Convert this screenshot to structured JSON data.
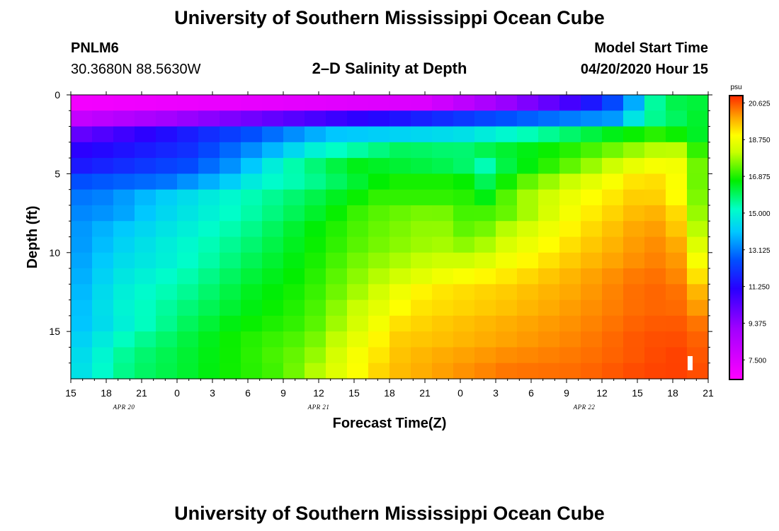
{
  "page": {
    "title_top": "University of Southern Mississippi Ocean Cube",
    "title_bottom": "University of Southern Mississippi Ocean Cube",
    "station_id": "PNLM6",
    "station_coords": "30.3680N 88.5630W",
    "plot_title": "2–D Salinity at Depth",
    "model_start_label": "Model Start Time",
    "model_start_value": "04/20/2020 Hour 15"
  },
  "chart_data": {
    "type": "heatmap",
    "title": "2–D Salinity at Depth",
    "xlabel": "Forecast Time(Z)",
    "ylabel": "Depth (ft)",
    "x_hours_range": [
      0,
      54
    ],
    "x_ticks": [
      "15",
      "18",
      "21",
      "0",
      "3",
      "6",
      "9",
      "12",
      "15",
      "18",
      "21",
      "0",
      "3",
      "6",
      "9",
      "12",
      "15",
      "18",
      "21"
    ],
    "x_tick_hours": [
      0,
      3,
      6,
      9,
      12,
      15,
      18,
      21,
      24,
      27,
      30,
      33,
      36,
      39,
      42,
      45,
      48,
      51,
      54
    ],
    "date_labels": [
      {
        "text": "APR 20",
        "hour": 4.5
      },
      {
        "text": "APR 21",
        "hour": 21
      },
      {
        "text": "APR 22",
        "hour": 43.5
      }
    ],
    "y_range_ft": [
      0,
      18
    ],
    "y_ticks": [
      0,
      5,
      10,
      15
    ],
    "colorbar": {
      "unit": "psu",
      "min": 6.5,
      "max": 21.0,
      "labels": [
        "20.625",
        "18.750",
        "16.875",
        "15.000",
        "13.125",
        "11.250",
        "9.375",
        "7.500"
      ],
      "label_values": [
        20.625,
        18.75,
        16.875,
        15.0,
        13.125,
        11.25,
        9.375,
        7.5
      ]
    },
    "grid": {
      "cols": 30,
      "rows": 18
    },
    "rows": [
      {
        "depth": 0.5,
        "profile": [
          [
            0,
            6.8
          ],
          [
            30,
            7.5
          ],
          [
            42,
            10.5
          ],
          [
            47,
            13
          ],
          [
            50,
            16
          ],
          [
            54,
            16.3
          ]
        ]
      },
      {
        "depth": 1.5,
        "profile": [
          [
            0,
            8
          ],
          [
            20,
            10.5
          ],
          [
            36,
            12.5
          ],
          [
            46,
            13.5
          ],
          [
            49,
            15.5
          ],
          [
            54,
            16.5
          ]
        ]
      },
      {
        "depth": 2.5,
        "profile": [
          [
            0,
            10
          ],
          [
            15,
            12.5
          ],
          [
            22,
            14
          ],
          [
            33,
            14.5
          ],
          [
            40,
            15.5
          ],
          [
            46,
            16.5
          ],
          [
            50,
            17
          ],
          [
            54,
            16.2
          ]
        ]
      },
      {
        "depth": 3.5,
        "profile": [
          [
            0,
            11
          ],
          [
            10,
            12
          ],
          [
            16,
            13.5
          ],
          [
            21,
            15
          ],
          [
            28,
            16
          ],
          [
            33,
            15.8
          ],
          [
            36,
            16.2
          ],
          [
            43,
            17
          ],
          [
            48,
            17.8
          ],
          [
            51,
            18.2
          ],
          [
            54,
            16.5
          ]
        ]
      },
      {
        "depth": 4.5,
        "profile": [
          [
            0,
            11.5
          ],
          [
            10,
            12.5
          ],
          [
            14,
            13.5
          ],
          [
            18,
            15.2
          ],
          [
            24,
            16.5
          ],
          [
            33,
            16
          ],
          [
            35,
            15.3
          ],
          [
            37,
            16.2
          ],
          [
            43,
            17.5
          ],
          [
            48,
            18.7
          ],
          [
            51,
            19
          ],
          [
            54,
            16.8
          ]
        ]
      },
      {
        "depth": 5.5,
        "profile": [
          [
            0,
            12.5
          ],
          [
            8,
            13
          ],
          [
            13,
            14
          ],
          [
            16,
            15
          ],
          [
            20,
            15.5
          ],
          [
            27,
            16.8
          ],
          [
            33,
            16.8
          ],
          [
            35,
            16
          ],
          [
            38,
            17.2
          ],
          [
            43,
            18.3
          ],
          [
            48,
            19.3
          ],
          [
            51,
            19.3
          ],
          [
            52,
            18
          ],
          [
            54,
            17
          ]
        ]
      },
      {
        "depth": 6.5,
        "profile": [
          [
            0,
            13
          ],
          [
            3,
            13.2
          ],
          [
            7,
            14
          ],
          [
            15,
            15.3
          ],
          [
            20,
            16
          ],
          [
            26,
            17
          ],
          [
            33,
            17
          ],
          [
            35,
            16.5
          ],
          [
            38,
            17.7
          ],
          [
            43,
            18.8
          ],
          [
            48,
            19.5
          ],
          [
            51,
            19.4
          ],
          [
            52,
            18
          ],
          [
            54,
            17.2
          ]
        ]
      },
      {
        "depth": 7.5,
        "profile": [
          [
            0,
            13.2
          ],
          [
            4,
            13.5
          ],
          [
            7,
            14.2
          ],
          [
            15,
            15.4
          ],
          [
            20,
            16.2
          ],
          [
            25,
            17.2
          ],
          [
            31,
            17.6
          ],
          [
            34,
            17
          ],
          [
            37,
            17.4
          ],
          [
            43,
            19
          ],
          [
            48,
            19.7
          ],
          [
            51,
            19.8
          ],
          [
            52,
            18.3
          ],
          [
            54,
            17.3
          ]
        ]
      },
      {
        "depth": 8.5,
        "profile": [
          [
            0,
            13.3
          ],
          [
            4,
            14
          ],
          [
            8,
            14.6
          ],
          [
            15,
            15.6
          ],
          [
            20,
            16.5
          ],
          [
            25,
            17.3
          ],
          [
            31,
            17.8
          ],
          [
            34,
            17.2
          ],
          [
            37,
            18
          ],
          [
            43,
            19.2
          ],
          [
            48,
            19.9
          ],
          [
            51,
            20
          ],
          [
            52,
            18.5
          ],
          [
            54,
            17.6
          ]
        ]
      },
      {
        "depth": 9.5,
        "profile": [
          [
            0,
            13.3
          ],
          [
            4,
            14.2
          ],
          [
            8,
            14.8
          ],
          [
            15,
            15.8
          ],
          [
            20,
            16.6
          ],
          [
            25,
            17.4
          ],
          [
            31,
            17.9
          ],
          [
            34,
            17.6
          ],
          [
            37,
            18.4
          ],
          [
            43,
            19.4
          ],
          [
            48,
            20
          ],
          [
            51,
            20.2
          ],
          [
            52,
            19
          ],
          [
            54,
            18
          ]
        ]
      },
      {
        "depth": 10.5,
        "profile": [
          [
            0,
            13.4
          ],
          [
            4,
            14.4
          ],
          [
            9,
            15
          ],
          [
            15,
            16
          ],
          [
            20,
            16.7
          ],
          [
            25,
            17.6
          ],
          [
            31,
            18.2
          ],
          [
            34,
            18.2
          ],
          [
            37,
            18.8
          ],
          [
            43,
            19.6
          ],
          [
            48,
            20.1
          ],
          [
            51,
            20.3
          ],
          [
            52,
            19.3
          ],
          [
            54,
            18.5
          ]
        ]
      },
      {
        "depth": 11.5,
        "profile": [
          [
            0,
            13.5
          ],
          [
            4,
            14.6
          ],
          [
            10,
            15.4
          ],
          [
            15,
            16.2
          ],
          [
            20,
            16.8
          ],
          [
            25,
            17.8
          ],
          [
            31,
            18.7
          ],
          [
            37,
            19.2
          ],
          [
            43,
            19.8
          ],
          [
            48,
            20.3
          ],
          [
            51,
            20.4
          ],
          [
            52,
            19.6
          ],
          [
            54,
            19
          ]
        ]
      },
      {
        "depth": 12.5,
        "profile": [
          [
            0,
            13.6
          ],
          [
            4,
            14.8
          ],
          [
            10,
            15.6
          ],
          [
            15,
            16.4
          ],
          [
            20,
            16.9
          ],
          [
            25,
            18
          ],
          [
            29,
            19
          ],
          [
            31,
            19.2
          ],
          [
            37,
            19.5
          ],
          [
            43,
            19.9
          ],
          [
            48,
            20.4
          ],
          [
            51,
            20.5
          ],
          [
            52,
            20
          ],
          [
            54,
            19.5
          ]
        ]
      },
      {
        "depth": 13.5,
        "profile": [
          [
            0,
            13.7
          ],
          [
            4,
            14.9
          ],
          [
            10,
            15.8
          ],
          [
            15,
            16.5
          ],
          [
            20,
            17
          ],
          [
            25,
            18.3
          ],
          [
            29,
            19.2
          ],
          [
            31,
            19.3
          ],
          [
            37,
            19.6
          ],
          [
            43,
            20
          ],
          [
            48,
            20.4
          ],
          [
            51,
            20.5
          ],
          [
            52,
            20.2
          ],
          [
            54,
            19.8
          ]
        ]
      },
      {
        "depth": 14.5,
        "profile": [
          [
            0,
            13.8
          ],
          [
            5,
            15
          ],
          [
            10,
            16
          ],
          [
            14,
            16.6
          ],
          [
            20,
            17.1
          ],
          [
            25,
            18.5
          ],
          [
            28,
            19.3
          ],
          [
            31,
            19.5
          ],
          [
            37,
            19.8
          ],
          [
            43,
            20.1
          ],
          [
            48,
            20.5
          ],
          [
            51,
            20.6
          ],
          [
            54,
            20.2
          ]
        ]
      },
      {
        "depth": 15.5,
        "profile": [
          [
            0,
            14
          ],
          [
            5,
            15.4
          ],
          [
            10,
            16.2
          ],
          [
            14,
            16.8
          ],
          [
            20,
            17.3
          ],
          [
            25,
            18.8
          ],
          [
            28,
            19.5
          ],
          [
            31,
            19.6
          ],
          [
            37,
            19.9
          ],
          [
            43,
            20.2
          ],
          [
            48,
            20.6
          ],
          [
            51,
            20.7
          ],
          [
            54,
            20.4
          ]
        ]
      },
      {
        "depth": 16.5,
        "profile": [
          [
            0,
            14.2
          ],
          [
            5,
            15.7
          ],
          [
            10,
            16.3
          ],
          [
            14,
            16.8
          ],
          [
            20,
            17.5
          ],
          [
            24,
            18.8
          ],
          [
            28,
            19.6
          ],
          [
            31,
            19.8
          ],
          [
            37,
            20.1
          ],
          [
            43,
            20.3
          ],
          [
            48,
            20.6
          ],
          [
            51,
            20.8
          ],
          [
            54,
            20.5
          ]
        ]
      },
      {
        "depth": 17.5,
        "profile": [
          [
            0,
            14.3
          ],
          [
            5,
            15.8
          ],
          [
            9,
            16.2
          ],
          [
            13,
            16.7
          ],
          [
            18,
            17.2
          ],
          [
            23,
            18.6
          ],
          [
            27,
            19.6
          ],
          [
            31,
            19.9
          ],
          [
            37,
            20.3
          ],
          [
            43,
            20.4
          ],
          [
            48,
            20.7
          ],
          [
            51,
            20.8
          ],
          [
            54,
            20.6
          ]
        ]
      }
    ]
  }
}
